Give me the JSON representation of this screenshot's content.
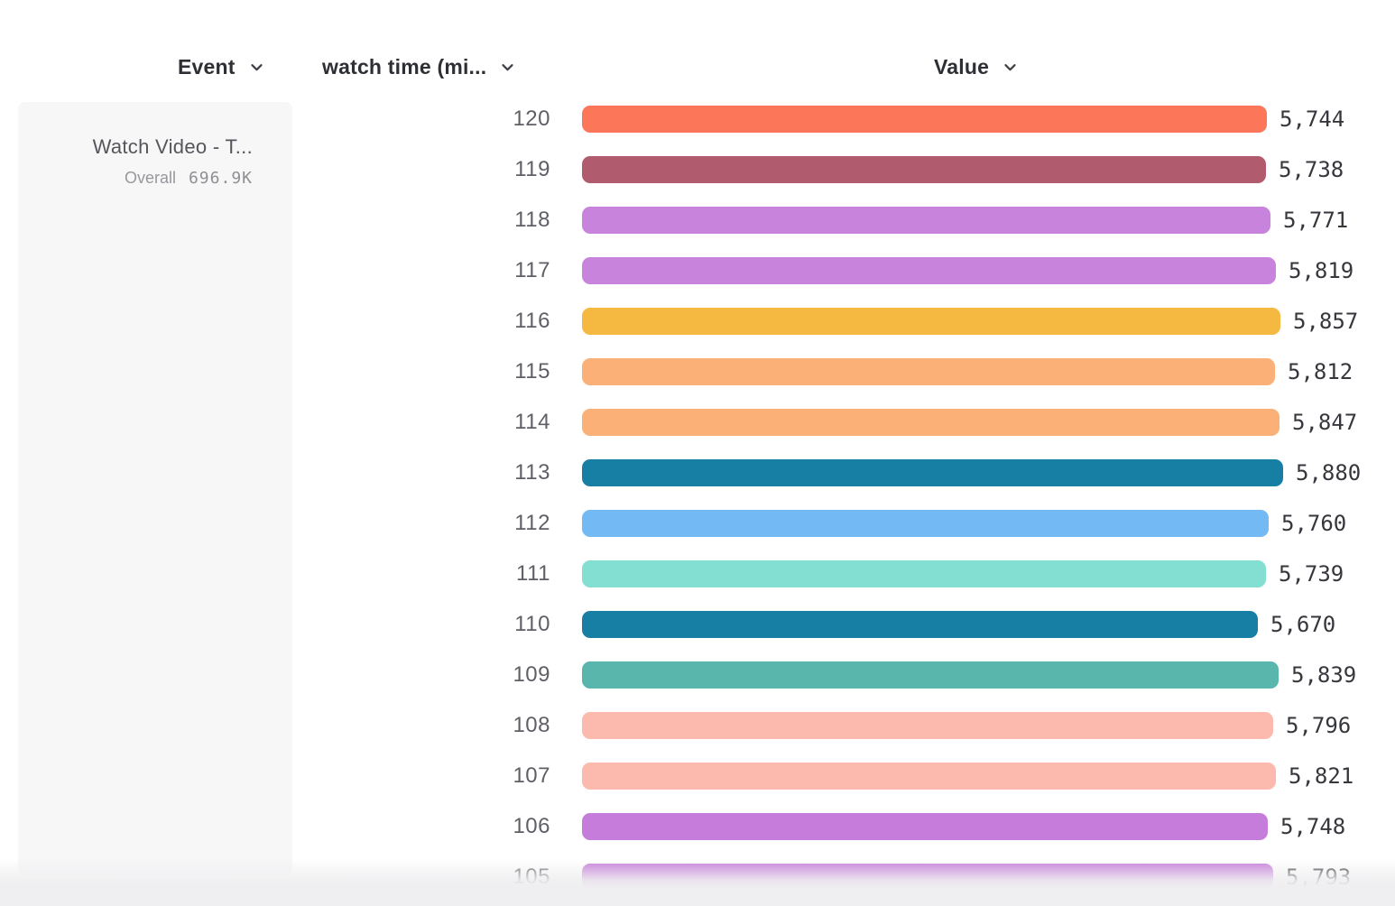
{
  "header": {
    "event_column": {
      "label": "Event"
    },
    "property_column": {
      "label": "watch time (mi..."
    },
    "value_column": {
      "label": "Value"
    }
  },
  "event_card": {
    "title": "Watch Video - T...",
    "series_label": "Overall",
    "series_total": "696.9K"
  },
  "icons": {
    "chevron_down_color": "#3e3f45"
  },
  "chart_data": {
    "type": "bar",
    "orientation": "horizontal",
    "title": "",
    "xlabel": "Value",
    "ylabel": "watch time (mi...)",
    "series_name": "Watch Video - T...",
    "series_total_label": "696.9K",
    "value_axis_max": 5880,
    "categories": [
      "120",
      "119",
      "118",
      "117",
      "116",
      "115",
      "114",
      "113",
      "112",
      "111",
      "110",
      "109",
      "108",
      "107",
      "106",
      "105"
    ],
    "values": [
      5744,
      5738,
      5771,
      5819,
      5857,
      5812,
      5847,
      5880,
      5760,
      5739,
      5670,
      5839,
      5796,
      5821,
      5748,
      5793
    ],
    "value_labels": [
      "5,744",
      "5,738",
      "5,771",
      "5,819",
      "5,857",
      "5,812",
      "5,847",
      "5,880",
      "5,760",
      "5,739",
      "5,670",
      "5,839",
      "5,796",
      "5,821",
      "5,748",
      "5,793"
    ],
    "bar_colors": [
      "#FC765A",
      "#B05B6E",
      "#C884DD",
      "#C884DD",
      "#F5B942",
      "#FBB078",
      "#FBB078",
      "#177EA4",
      "#73BAF4",
      "#82DFD2",
      "#177EA4",
      "#58B6AD",
      "#FCB9AD",
      "#FCB9AD",
      "#C67CDB",
      "#C67CDB"
    ],
    "legend": [],
    "grid": false
  }
}
